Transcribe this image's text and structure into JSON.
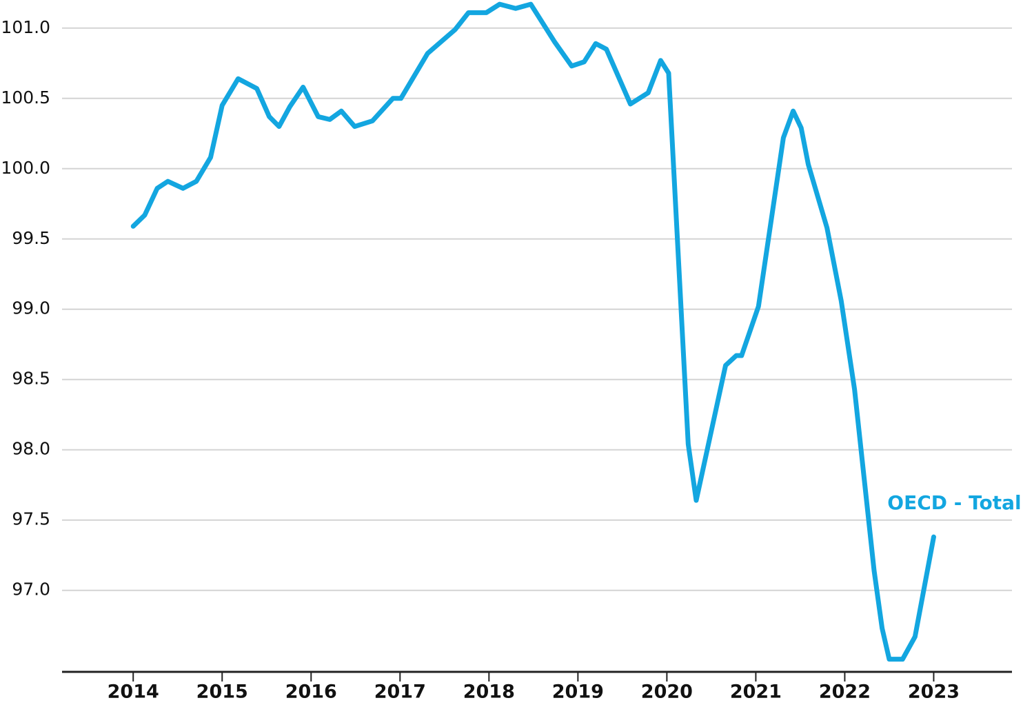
{
  "chart_data": {
    "type": "line",
    "x": [
      2014.0,
      2014.13,
      2014.27,
      2014.39,
      2014.56,
      2014.71,
      2014.87,
      2015.0,
      2015.18,
      2015.39,
      2015.53,
      2015.64,
      2015.76,
      2015.91,
      2016.08,
      2016.21,
      2016.34,
      2016.49,
      2016.69,
      2016.92,
      2017.01,
      2017.31,
      2017.62,
      2017.77,
      2017.97,
      2018.12,
      2018.3,
      2018.47,
      2018.74,
      2018.93,
      2019.07,
      2019.2,
      2019.32,
      2019.59,
      2019.79,
      2019.93,
      2020.02,
      2020.24,
      2020.33,
      2020.66,
      2020.78,
      2020.84,
      2021.03,
      2021.31,
      2021.42,
      2021.51,
      2021.59,
      2021.8,
      2021.96,
      2022.11,
      2022.33,
      2022.42,
      2022.5,
      2022.65,
      2022.79,
      2023.0
    ],
    "series": [
      {
        "name": "OECD - Total",
        "color": "#13a6e0",
        "values": [
          99.59,
          99.67,
          99.86,
          99.91,
          99.86,
          99.91,
          100.08,
          100.45,
          100.64,
          100.57,
          100.37,
          100.3,
          100.44,
          100.58,
          100.37,
          100.35,
          100.41,
          100.3,
          100.34,
          100.5,
          100.5,
          100.82,
          100.99,
          101.11,
          101.11,
          101.17,
          101.14,
          101.17,
          100.9,
          100.73,
          100.76,
          100.89,
          100.85,
          100.46,
          100.54,
          100.77,
          100.68,
          98.04,
          97.64,
          98.6,
          98.67,
          98.67,
          99.02,
          100.22,
          100.41,
          100.29,
          100.03,
          99.58,
          99.06,
          98.43,
          97.14,
          96.73,
          96.51,
          96.51,
          96.67,
          97.38
        ]
      }
    ],
    "xlim": [
      2013.2,
      2023.88
    ],
    "xticks": [
      2014,
      2015,
      2016,
      2017,
      2018,
      2019,
      2020,
      2021,
      2022,
      2023
    ],
    "ylim": [
      96.42,
      101.2
    ],
    "yticks": [
      {
        "value": 97,
        "label": "97.0"
      },
      {
        "value": 97.5,
        "label": "97.5"
      },
      {
        "value": 98,
        "label": "98.0"
      },
      {
        "value": 98.5,
        "label": "98.5"
      },
      {
        "value": 99,
        "label": "99.0"
      },
      {
        "value": 99.5,
        "label": "99.5"
      },
      {
        "value": 100,
        "label": "100.0"
      },
      {
        "value": 100.5,
        "label": "100.5"
      },
      {
        "value": 101,
        "label": "101.0"
      }
    ],
    "grid": true
  }
}
